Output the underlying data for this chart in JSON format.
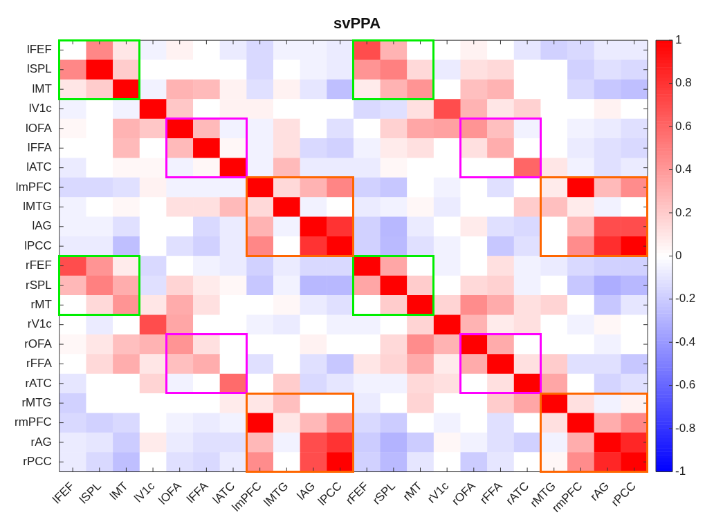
{
  "chart_data": {
    "type": "heatmap",
    "title": "svPPA",
    "categories": [
      "lFEF",
      "lSPL",
      "lMT",
      "lV1c",
      "lOFA",
      "lFFA",
      "lATC",
      "lmPFC",
      "lMTG",
      "lAG",
      "lPCC",
      "rFEF",
      "rSPL",
      "rMT",
      "rV1c",
      "rOFA",
      "rFFA",
      "rATC",
      "rMTG",
      "rmPFC",
      "rAG",
      "rPCC"
    ],
    "y_categories": [
      "lFEF",
      "lSPL",
      "lMT",
      "lV1c",
      "lOFA",
      "lFFA",
      "lATC",
      "lmPFC",
      "lMTG",
      "lAG",
      "lPCC",
      "rFEF",
      "rSPL",
      "rMT",
      "rV1c",
      "rOFA",
      "rFFA",
      "rATC",
      "rMTG",
      "rmPFC",
      "rAG",
      "rPCC"
    ],
    "cells": [
      [
        0,
        0.47,
        0.1,
        -0.05,
        0.05,
        0,
        -0.08,
        -0.15,
        -0.05,
        -0.05,
        -0.08,
        0.7,
        0.3,
        0,
        0,
        0.05,
        0,
        -0.1,
        -0.18,
        -0.15,
        -0.08,
        -0.08
      ],
      [
        0.47,
        1,
        0.2,
        0,
        0,
        0,
        0,
        -0.15,
        0,
        -0.05,
        -0.08,
        0.42,
        0.5,
        0.15,
        -0.08,
        0.12,
        0.15,
        0,
        0,
        -0.18,
        -0.12,
        -0.15
      ],
      [
        0.1,
        0.2,
        1,
        -0.05,
        0.3,
        0.27,
        0.05,
        -0.12,
        0.05,
        -0.1,
        -0.25,
        0.08,
        0.3,
        0.42,
        0,
        0.25,
        0.3,
        0,
        0,
        -0.15,
        -0.22,
        -0.25
      ],
      [
        -0.05,
        0,
        -0.05,
        1,
        0.22,
        0,
        0.05,
        0.05,
        0,
        0,
        0,
        -0.15,
        -0.12,
        0.12,
        0.7,
        0.3,
        0.1,
        0.18,
        0,
        0,
        0.05,
        0
      ],
      [
        0.03,
        0,
        0.3,
        0.22,
        1,
        0.27,
        -0.05,
        -0.05,
        0.12,
        0,
        -0.12,
        0,
        0.18,
        0.35,
        0.37,
        0.42,
        0.25,
        -0.05,
        0,
        -0.05,
        -0.08,
        -0.12
      ],
      [
        0,
        0,
        0.27,
        0,
        0.27,
        1,
        0.03,
        -0.05,
        0.12,
        -0.15,
        -0.18,
        -0.05,
        0.08,
        0.12,
        0,
        0.12,
        0.32,
        0,
        0,
        -0.08,
        -0.12,
        -0.15
      ],
      [
        -0.08,
        0,
        0.03,
        0.03,
        -0.05,
        0.03,
        1,
        -0.05,
        0.27,
        -0.08,
        -0.08,
        -0.08,
        0.03,
        0,
        0,
        0,
        0,
        0.6,
        0.1,
        -0.05,
        -0.12,
        -0.08
      ],
      [
        -0.15,
        -0.15,
        -0.12,
        0.05,
        -0.05,
        -0.05,
        -0.05,
        1,
        0.15,
        0.3,
        0.48,
        -0.18,
        -0.22,
        0,
        -0.05,
        0,
        -0.12,
        0,
        0.08,
        1,
        0.27,
        0.45
      ],
      [
        -0.05,
        0,
        0.03,
        0,
        0.12,
        0.12,
        0.27,
        0.15,
        1,
        -0.05,
        0,
        -0.08,
        -0.05,
        0.03,
        -0.08,
        0,
        0,
        0.2,
        0.25,
        0.08,
        -0.05,
        0
      ],
      [
        -0.05,
        -0.05,
        -0.12,
        0,
        0,
        -0.15,
        -0.08,
        0.3,
        -0.05,
        1,
        0.8,
        -0.18,
        -0.28,
        -0.08,
        0,
        0.08,
        -0.12,
        -0.15,
        0,
        0.27,
        0.7,
        0.7
      ],
      [
        -0.08,
        -0.08,
        -0.25,
        0,
        -0.12,
        -0.18,
        -0.08,
        0.47,
        0,
        0.8,
        1,
        -0.18,
        -0.27,
        -0.12,
        -0.05,
        0,
        -0.22,
        -0.12,
        0,
        0.45,
        0.82,
        1
      ],
      [
        0.7,
        0.42,
        0.08,
        -0.15,
        0,
        -0.05,
        -0.08,
        -0.18,
        -0.08,
        -0.15,
        -0.15,
        1,
        0.35,
        0,
        -0.05,
        0,
        0.12,
        -0.05,
        -0.08,
        -0.15,
        -0.18,
        -0.18
      ],
      [
        0.28,
        0.5,
        0.32,
        -0.12,
        0.17,
        0.08,
        0.03,
        -0.22,
        -0.05,
        -0.28,
        -0.28,
        0.35,
        1,
        0.2,
        0,
        0.15,
        0.18,
        -0.05,
        0,
        -0.22,
        -0.32,
        -0.28
      ],
      [
        0,
        0.15,
        0.42,
        0.1,
        0.33,
        0.12,
        0,
        0,
        0.03,
        -0.08,
        -0.12,
        0,
        0.2,
        1,
        0.17,
        0.45,
        0.33,
        0.12,
        0.17,
        0,
        -0.22,
        -0.1
      ],
      [
        0,
        -0.08,
        0,
        0.7,
        0.35,
        0,
        0,
        -0.05,
        -0.08,
        0,
        -0.05,
        -0.05,
        0,
        0.17,
        1,
        0.3,
        0.08,
        0.12,
        0,
        -0.05,
        0.03,
        0
      ],
      [
        0.03,
        0.1,
        0.25,
        0.3,
        0.42,
        0.12,
        0,
        0,
        0,
        0.05,
        0,
        0,
        0.15,
        0.45,
        0.3,
        1,
        0.33,
        0,
        0,
        0,
        -0.05,
        0
      ],
      [
        0,
        0.15,
        0.32,
        0.1,
        0.25,
        0.32,
        0,
        -0.12,
        0,
        -0.12,
        -0.22,
        0.1,
        0.17,
        0.33,
        0.08,
        0.33,
        1,
        0.12,
        0.2,
        -0.12,
        -0.12,
        -0.22
      ],
      [
        -0.1,
        0,
        0,
        0.17,
        -0.05,
        0,
        0.58,
        0,
        0.2,
        -0.15,
        -0.1,
        -0.05,
        -0.05,
        0.15,
        0.12,
        0,
        0.12,
        1,
        0.35,
        0,
        -0.17,
        -0.12
      ],
      [
        -0.18,
        0,
        0,
        0,
        0,
        0,
        0.08,
        0.1,
        0.25,
        0,
        0,
        -0.08,
        0,
        0.17,
        0,
        0,
        0.2,
        0.35,
        1,
        0.12,
        -0.05,
        0.05
      ],
      [
        -0.15,
        -0.18,
        -0.15,
        0,
        -0.05,
        -0.08,
        -0.05,
        1,
        0.1,
        0.28,
        0.47,
        -0.15,
        -0.2,
        0,
        -0.05,
        0,
        -0.12,
        0,
        0.12,
        1,
        0.32,
        0.47
      ],
      [
        -0.08,
        -0.1,
        -0.2,
        0.08,
        -0.08,
        -0.12,
        -0.12,
        0.28,
        -0.05,
        0.7,
        0.8,
        -0.2,
        -0.3,
        -0.2,
        0.03,
        -0.05,
        -0.12,
        -0.18,
        -0.05,
        0.32,
        1,
        0.85
      ],
      [
        -0.08,
        -0.15,
        -0.25,
        0,
        -0.12,
        -0.15,
        -0.08,
        0.45,
        0,
        0.7,
        1,
        -0.18,
        -0.27,
        -0.1,
        0,
        -0.2,
        -0.1,
        0,
        0.03,
        0.45,
        0.85,
        1
      ]
    ],
    "clim": [
      -1,
      1
    ],
    "cticks": [
      -1,
      -0.8,
      -0.6,
      -0.4,
      -0.2,
      0,
      0.2,
      0.4,
      0.6,
      0.8,
      1
    ]
  }
}
